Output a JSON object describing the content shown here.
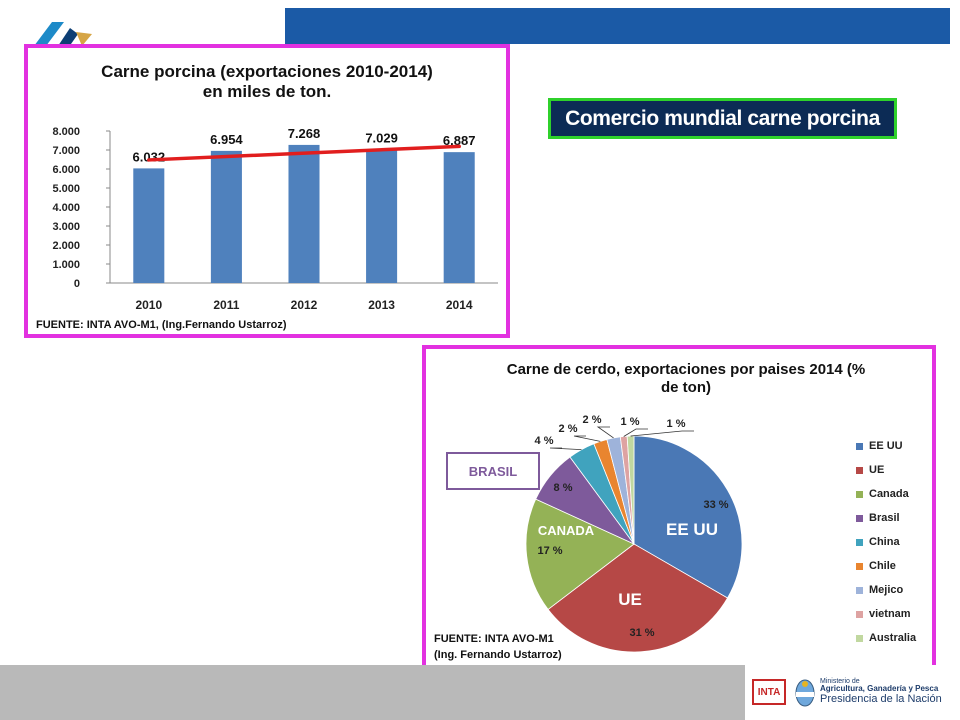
{
  "header": {
    "banner": "Comercio mundial carne porcina"
  },
  "colors": {
    "bar": "#4f81bd",
    "trend": "#e11e1e",
    "panel_border": "#e231e0",
    "banner_bg": "#0c2b55",
    "banner_border": "#2fd12b",
    "top_bar": "#1b5aa6"
  },
  "icons": {
    "logo": "inta-style-logo-icon",
    "footer_inta": "inta-logo-icon",
    "footer_ministry": "argentina-shield-icon"
  },
  "footer": {
    "inta": "INTA",
    "ministry_lines": [
      "Ministerio de",
      "Agricultura, Ganadería y Pesca",
      "Presidencia de la Nación"
    ]
  },
  "chart_data": [
    {
      "type": "bar",
      "title": "Carne porcina (exportaciones 2010-2014)\nen miles de ton.",
      "title_lines": [
        "Carne porcina (exportaciones 2010-2014)",
        "en miles de ton."
      ],
      "categories": [
        "2010",
        "2011",
        "2012",
        "2013",
        "2014"
      ],
      "values": [
        6032,
        6954,
        7268,
        7029,
        6887
      ],
      "data_labels": [
        "6.032",
        "6.954",
        "7.268",
        "7.029",
        "6.887"
      ],
      "ylim": [
        0,
        8000
      ],
      "yticks": [
        0,
        1000,
        2000,
        3000,
        4000,
        5000,
        6000,
        7000,
        8000
      ],
      "ytick_labels": [
        "0",
        "1.000",
        "2.000",
        "3.000",
        "4.000",
        "5.000",
        "6.000",
        "7.000",
        "8.000"
      ],
      "trendline": {
        "type": "linear"
      },
      "grid": false,
      "legend": "none",
      "source": "FUENTE: INTA AVO-M1, (Ing.Fernando  Ustarroz)"
    },
    {
      "type": "pie",
      "title": "Carne de cerdo, exportaciones por paises 2014 (% de ton)",
      "title_lines": [
        "Carne de cerdo, exportaciones por paises 2014 (%",
        "de ton)"
      ],
      "labels": [
        "EE UU",
        "UE",
        "Canada",
        "Brasil",
        "China",
        "Chile",
        "Mejico",
        "vietnam",
        "Australia"
      ],
      "values": [
        33,
        31,
        17,
        8,
        4,
        2,
        2,
        1,
        1
      ],
      "value_labels": [
        "33 %",
        "31 %",
        "17 %",
        "8 %",
        "4 %",
        "2 %",
        "2 %",
        "1 %",
        "1 %"
      ],
      "colors": [
        "#4a78b5",
        "#b64846",
        "#94b256",
        "#7e5a9b",
        "#40a3be",
        "#e9852f",
        "#9eb3da",
        "#dea3a2",
        "#c1d8a0"
      ],
      "slice_callouts": [
        {
          "slice": "EE UU",
          "text": "EE UU"
        },
        {
          "slice": "UE",
          "text": "UE"
        },
        {
          "slice": "Canada",
          "text": "CANADA"
        }
      ],
      "highlight_box": "BRASIL",
      "legend": "right",
      "source": [
        "FUENTE: INTA AVO-M1",
        "(Ing. Fernando Ustarroz)"
      ]
    }
  ]
}
